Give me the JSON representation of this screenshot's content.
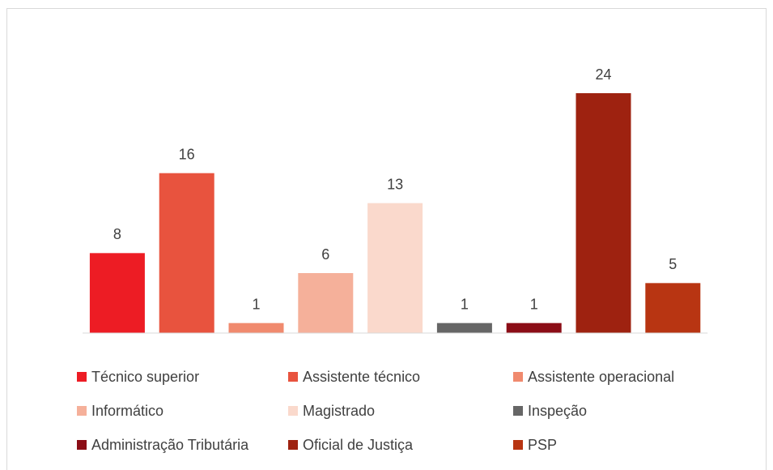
{
  "chart_data": {
    "type": "bar",
    "categories": [
      null
    ],
    "series": [
      {
        "name": "Técnico superior",
        "color": "#ed1c24",
        "values": [
          8
        ]
      },
      {
        "name": "Assistente técnico",
        "color": "#e8533e",
        "values": [
          16
        ]
      },
      {
        "name": "Assistente operacional",
        "color": "#f08a6e",
        "values": [
          1
        ]
      },
      {
        "name": "Informático",
        "color": "#f5b09a",
        "values": [
          6
        ]
      },
      {
        "name": "Magistrado",
        "color": "#fad9cc",
        "values": [
          13
        ]
      },
      {
        "name": "Inspeção",
        "color": "#666666",
        "values": [
          1
        ]
      },
      {
        "name": "Administração Tributária",
        "color": "#8b0d16",
        "values": [
          1
        ]
      },
      {
        "name": "Oficial de Justiça",
        "color": "#9e2210",
        "values": [
          24
        ]
      },
      {
        "name": "PSP",
        "color": "#b83512",
        "values": [
          5
        ]
      }
    ]
  }
}
